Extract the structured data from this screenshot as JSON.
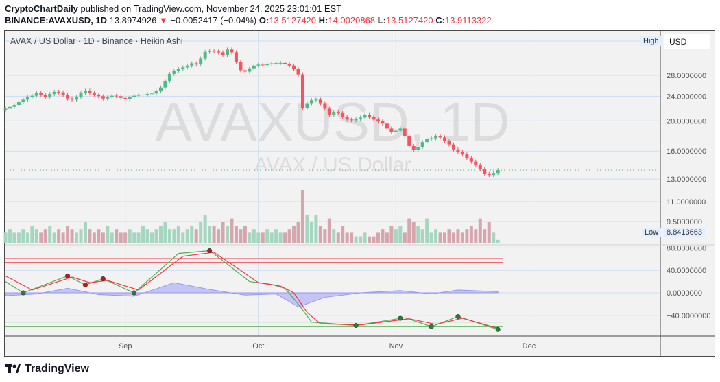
{
  "header": {
    "author": "CryptoChartDaily",
    "published_text": "published on TradingView.com, November 24, 2025 23:01:01 EST",
    "symbol": "BINANCE:AVAXUSD, 1D",
    "last": "13.8974926",
    "change": "−0.0052417 (−0.04%)",
    "o_label": "O:",
    "o": "13.5127420",
    "h_label": "H:",
    "h": "14.0020868",
    "l_label": "L:",
    "l": "13.5127420",
    "c_label": "C:",
    "c": "13.9113322"
  },
  "chart": {
    "legend": "AVAX / US Dollar · 1D · Binance · Heikin Ashi",
    "watermark": "AVAXUSD, 1D",
    "watermark_sub": "AVAX / US Dollar",
    "currency_button": "USD",
    "high_tag": "High",
    "low_tag": "Low",
    "low_value": "8.8413663",
    "price_ticks": [
      "28.0000000",
      "24.0000000",
      "20.0000000",
      "16.0000000",
      "13.0000000",
      "11.0000000",
      "9.5000000"
    ],
    "osc_ticks": [
      "80.0000000",
      "40.0000000",
      "0.0000000",
      "−40.0000000"
    ],
    "time_ticks": [
      "Sep",
      "Oct",
      "Nov",
      "Dec"
    ]
  },
  "colors": {
    "up": "#4fb987",
    "down": "#f7525f",
    "k_line": "#4caf50",
    "d_line": "#f23645",
    "histogram": "#9598f5",
    "grid": "#c9dcf5"
  },
  "chart_data": {
    "type": "candlestick",
    "style": "Heikin Ashi",
    "y_scale": "log",
    "start_date": "2025-08-05",
    "end_date": "2025-11-24",
    "ylim": [
      8.84,
      36
    ],
    "grid": true,
    "closes": [
      21.9,
      22.2,
      22.5,
      23.0,
      23.4,
      23.9,
      24.1,
      24.6,
      24.3,
      23.9,
      24.4,
      24.8,
      24.7,
      24.2,
      23.6,
      23.4,
      23.8,
      24.6,
      25.0,
      24.6,
      24.3,
      24.0,
      23.6,
      23.8,
      24.1,
      24.0,
      23.7,
      23.5,
      23.8,
      24.1,
      24.3,
      24.3,
      24.4,
      24.5,
      24.9,
      25.6,
      26.9,
      28.3,
      28.9,
      29.4,
      29.7,
      30.1,
      30.6,
      30.5,
      31.7,
      33.3,
      33.6,
      33.4,
      33.2,
      32.6,
      33.9,
      33.2,
      31.0,
      29.1,
      28.8,
      29.5,
      30.1,
      30.3,
      30.2,
      30.5,
      30.6,
      30.7,
      30.7,
      30.5,
      30.1,
      29.4,
      28.2,
      22.0,
      22.8,
      23.3,
      23.4,
      22.8,
      21.9,
      20.9,
      21.3,
      21.2,
      20.6,
      20.2,
      20.1,
      20.3,
      20.5,
      20.9,
      20.6,
      20.2,
      20.0,
      19.6,
      18.9,
      18.4,
      18.6,
      18.9,
      17.9,
      16.6,
      16.1,
      16.5,
      17.1,
      17.5,
      17.6,
      17.9,
      17.7,
      17.2,
      16.8,
      16.2,
      15.9,
      15.6,
      15.2,
      14.8,
      14.4,
      14.0,
      13.5,
      13.4,
      13.6,
      13.9
    ],
    "volume_relative": [
      3,
      4,
      3,
      3,
      4,
      3,
      5,
      4,
      3,
      4,
      5,
      3,
      4,
      3,
      5,
      4,
      3,
      4,
      6,
      4,
      3,
      4,
      3,
      5,
      3,
      4,
      3,
      3,
      4,
      3,
      3,
      5,
      4,
      3,
      4,
      5,
      6,
      4,
      4,
      5,
      3,
      4,
      5,
      4,
      6,
      8,
      5,
      5,
      4,
      6,
      5,
      7,
      5,
      4,
      5,
      3,
      4,
      3,
      3,
      4,
      3,
      4,
      3,
      3,
      4,
      5,
      6,
      15,
      8,
      6,
      8,
      5,
      4,
      7,
      4,
      3,
      5,
      3,
      3,
      2,
      2,
      3,
      2,
      2,
      3,
      4,
      3,
      5,
      4,
      5,
      3,
      7,
      6,
      5,
      4,
      7,
      3,
      4,
      3,
      3,
      4,
      3,
      4,
      3,
      4,
      5,
      4,
      7,
      4,
      6,
      3,
      1
    ],
    "oscillator": {
      "k": [
        [
          "2025-08-05",
          20
        ],
        [
          "2025-08-09",
          0
        ],
        [
          "2025-08-19",
          30
        ],
        [
          "2025-08-23",
          14
        ],
        [
          "2025-08-27",
          25
        ],
        [
          "2025-09-03",
          0
        ],
        [
          "2025-09-13",
          70
        ],
        [
          "2025-09-20",
          75
        ],
        [
          "2025-09-25",
          45
        ],
        [
          "2025-09-29",
          20
        ],
        [
          "2025-10-04",
          15
        ],
        [
          "2025-10-07",
          8
        ],
        [
          "2025-10-10",
          -20
        ],
        [
          "2025-10-13",
          -52
        ],
        [
          "2025-10-23",
          -58
        ],
        [
          "2025-11-03",
          -44
        ],
        [
          "2025-11-09",
          -60
        ],
        [
          "2025-11-15",
          -42
        ],
        [
          "2025-11-24",
          -65
        ]
      ],
      "d": [
        [
          "2025-08-05",
          30
        ],
        [
          "2025-08-11",
          5
        ],
        [
          "2025-08-20",
          28
        ],
        [
          "2025-08-24",
          18
        ],
        [
          "2025-08-28",
          22
        ],
        [
          "2025-09-04",
          5
        ],
        [
          "2025-09-14",
          65
        ],
        [
          "2025-09-21",
          72
        ],
        [
          "2025-09-27",
          40
        ],
        [
          "2025-10-01",
          18
        ],
        [
          "2025-10-06",
          12
        ],
        [
          "2025-10-09",
          0
        ],
        [
          "2025-10-12",
          -35
        ],
        [
          "2025-10-15",
          -55
        ],
        [
          "2025-10-24",
          -57
        ],
        [
          "2025-11-04",
          -46
        ],
        [
          "2025-11-10",
          -56
        ],
        [
          "2025-11-16",
          -45
        ],
        [
          "2025-11-24",
          -63
        ]
      ],
      "histogram": [
        [
          "2025-08-05",
          -5
        ],
        [
          "2025-08-12",
          -2
        ],
        [
          "2025-08-19",
          8
        ],
        [
          "2025-08-26",
          -3
        ],
        [
          "2025-09-03",
          -6
        ],
        [
          "2025-09-12",
          18
        ],
        [
          "2025-09-20",
          6
        ],
        [
          "2025-09-28",
          -4
        ],
        [
          "2025-10-05",
          -2
        ],
        [
          "2025-10-10",
          -25
        ],
        [
          "2025-10-16",
          -8
        ],
        [
          "2025-10-24",
          0
        ],
        [
          "2025-11-02",
          4
        ],
        [
          "2025-11-09",
          -2
        ],
        [
          "2025-11-15",
          5
        ],
        [
          "2025-11-24",
          2
        ]
      ],
      "levels": [
        61,
        54,
        -52,
        -60
      ],
      "markers": [
        "2025-08-09",
        "2025-08-19",
        "2025-08-23",
        "2025-08-27",
        "2025-09-03",
        "2025-09-20",
        "2025-10-23",
        "2025-11-02",
        "2025-11-09",
        "2025-11-15",
        "2025-11-24"
      ]
    }
  },
  "footer": {
    "brand": "TradingView"
  }
}
